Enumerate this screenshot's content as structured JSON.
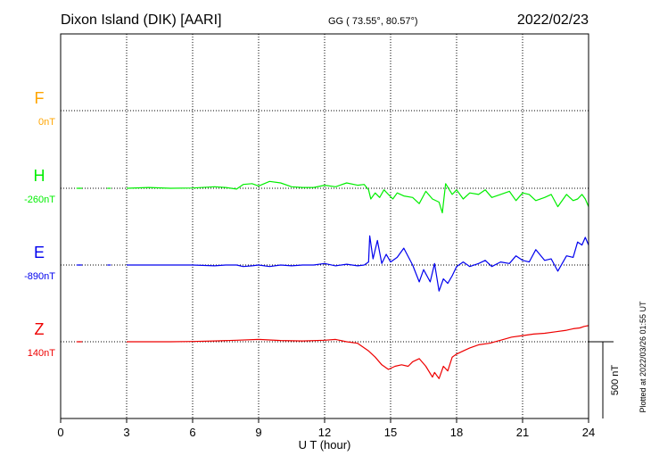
{
  "header": {
    "station": "Dixon Island (DIK)  [AARI]",
    "coords": "GG ( 73.55°,  80.57°)",
    "date": "2022/02/23"
  },
  "plotted_note": "Plotted at 2022/03/26 01:55 UT",
  "scale_label": "500 nT",
  "chart_data": {
    "type": "line",
    "title": "Dixon Island (DIK)  [AARI]",
    "xlabel": "U T (hour)",
    "ylabel": "",
    "xlim": [
      0,
      24
    ],
    "xticks": [
      "0",
      "3",
      "6",
      "9",
      "12",
      "15",
      "18",
      "21",
      "24"
    ],
    "grid": true,
    "scale_bar_nT": 500,
    "series": [
      {
        "name": "F",
        "baseline_label": "0nT",
        "color": "#ffa500",
        "x": [],
        "y": []
      },
      {
        "name": "H",
        "baseline_label": "-260nT",
        "color": "#00ee00",
        "x": [
          0.8,
          0.9,
          2.2,
          3.0,
          4.0,
          5.0,
          6.0,
          7.0,
          7.5,
          8.0,
          8.3,
          8.7,
          9.0,
          9.5,
          10.0,
          10.5,
          11.0,
          11.5,
          12.0,
          12.5,
          13.0,
          13.5,
          13.8,
          14.0,
          14.1,
          14.3,
          14.5,
          14.7,
          14.9,
          15.1,
          15.3,
          15.6,
          16.0,
          16.3,
          16.6,
          16.9,
          17.2,
          17.35,
          17.5,
          17.8,
          18.0,
          18.3,
          18.6,
          19.0,
          19.3,
          19.6,
          20.0,
          20.4,
          20.7,
          21.0,
          21.3,
          21.6,
          22.0,
          22.3,
          22.6,
          23.0,
          23.3,
          23.5,
          23.7,
          23.85,
          24.0
        ],
        "y": [
          -260,
          -260,
          -260,
          -260,
          -255,
          -260,
          -258,
          -250,
          -255,
          -265,
          -235,
          -230,
          -245,
          -215,
          -225,
          -250,
          -255,
          -255,
          -240,
          -250,
          -225,
          -240,
          -235,
          -270,
          -330,
          -290,
          -320,
          -270,
          -300,
          -330,
          -290,
          -310,
          -320,
          -360,
          -280,
          -330,
          -350,
          -420,
          -230,
          -300,
          -270,
          -330,
          -290,
          -300,
          -270,
          -320,
          -300,
          -280,
          -340,
          -290,
          -300,
          -340,
          -320,
          -300,
          -380,
          -300,
          -340,
          -330,
          -300,
          -330,
          -380
        ]
      },
      {
        "name": "E",
        "baseline_label": "-890nT",
        "color": "#0000ee",
        "x": [
          0.8,
          0.9,
          2.2,
          3.0,
          4.0,
          5.0,
          6.0,
          7.0,
          7.5,
          8.0,
          8.3,
          8.7,
          9.0,
          9.5,
          10.0,
          10.5,
          11.0,
          11.5,
          12.0,
          12.5,
          13.0,
          13.5,
          13.8,
          14.0,
          14.05,
          14.2,
          14.4,
          14.6,
          14.8,
          15.0,
          15.3,
          15.6,
          16.0,
          16.3,
          16.5,
          16.8,
          17.0,
          17.2,
          17.4,
          17.6,
          17.8,
          18.0,
          18.3,
          18.6,
          19.0,
          19.3,
          19.6,
          20.0,
          20.4,
          20.7,
          21.0,
          21.3,
          21.6,
          22.0,
          22.3,
          22.6,
          23.0,
          23.3,
          23.5,
          23.7,
          23.85,
          24.0
        ],
        "y": [
          -890,
          -890,
          -890,
          -890,
          -890,
          -890,
          -890,
          -895,
          -890,
          -890,
          -900,
          -895,
          -890,
          -900,
          -890,
          -895,
          -890,
          -890,
          -880,
          -895,
          -885,
          -895,
          -890,
          -870,
          -700,
          -850,
          -730,
          -880,
          -820,
          -870,
          -840,
          -780,
          -890,
          -1000,
          -920,
          -1000,
          -880,
          -1060,
          -980,
          -1010,
          -960,
          -900,
          -870,
          -900,
          -880,
          -860,
          -900,
          -870,
          -880,
          -830,
          -860,
          -870,
          -790,
          -860,
          -850,
          -930,
          -830,
          -840,
          -740,
          -760,
          -710,
          -760
        ]
      },
      {
        "name": "Z",
        "baseline_label": "140nT",
        "color": "#ee0000",
        "x": [
          0.8,
          0.9,
          3.0,
          4.0,
          5.0,
          6.0,
          7.0,
          8.0,
          9.0,
          10.0,
          11.0,
          12.0,
          12.5,
          13.0,
          13.5,
          14.0,
          14.3,
          14.6,
          14.9,
          15.2,
          15.5,
          15.8,
          16.0,
          16.3,
          16.6,
          16.9,
          17.0,
          17.2,
          17.4,
          17.6,
          17.8,
          18.0,
          18.3,
          18.6,
          19.0,
          19.5,
          20.0,
          20.5,
          21.0,
          21.5,
          22.0,
          22.5,
          23.0,
          23.3,
          23.6,
          23.8,
          24.0
        ],
        "y": [
          140,
          140,
          140,
          140,
          140,
          142,
          145,
          150,
          155,
          148,
          145,
          150,
          155,
          140,
          130,
          80,
          40,
          -10,
          -40,
          -20,
          -10,
          -20,
          10,
          30,
          -20,
          -90,
          -60,
          -100,
          -20,
          -50,
          40,
          60,
          80,
          100,
          120,
          130,
          150,
          170,
          180,
          190,
          195,
          205,
          215,
          225,
          230,
          240,
          245
        ]
      }
    ]
  }
}
